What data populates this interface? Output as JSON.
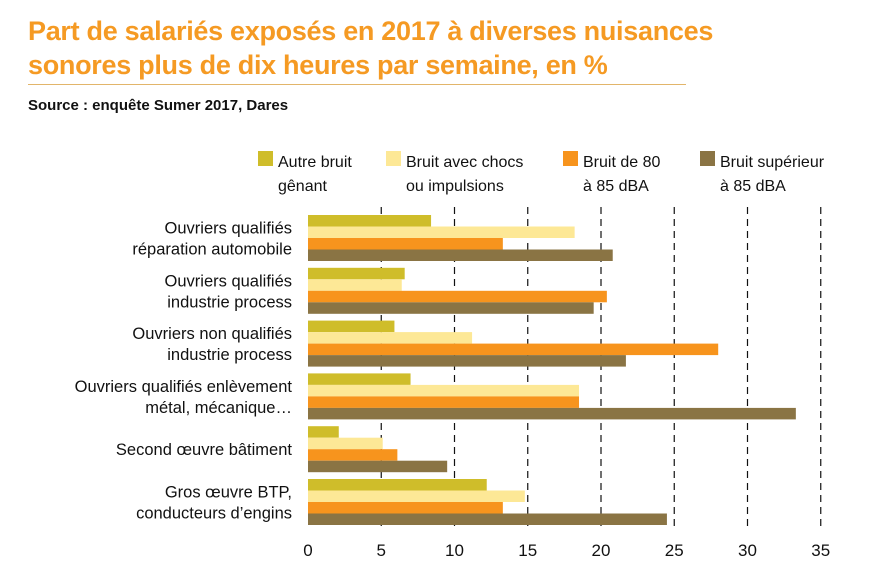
{
  "title_lines": [
    "Part de salariés exposés en 2017 à diverses nuisances",
    "sonores plus de dix heures par semaine, en %"
  ],
  "source": "Source : enquête Sumer 2017, Dares",
  "colors": {
    "title": "#f59a23",
    "series": [
      "#cfbd2a",
      "#fde896",
      "#f7941d",
      "#8a7444"
    ],
    "gridline": "#111111"
  },
  "chart_data": {
    "type": "bar",
    "orientation": "horizontal",
    "title": "Part de salariés exposés en 2017 à diverses nuisances sonores plus de dix heures par semaine, en %",
    "source": "Source : enquête Sumer 2017, Dares",
    "categories": [
      [
        "Ouvriers qualifiés",
        "réparation automobile"
      ],
      [
        "Ouvriers qualifiés",
        "industrie process"
      ],
      [
        "Ouvriers non qualifiés",
        "industrie process"
      ],
      [
        "Ouvriers qualifiés enlèvement",
        "métal, mécanique…"
      ],
      [
        "Second œuvre bâtiment"
      ],
      [
        "Gros œuvre BTP,",
        "conducteurs d’engins"
      ]
    ],
    "series": [
      {
        "name": "Autre bruit gênant",
        "legend_lines": [
          "Autre bruit",
          "gênant"
        ],
        "values": [
          8.4,
          6.6,
          5.9,
          7.0,
          2.1,
          12.2
        ]
      },
      {
        "name": "Bruit avec chocs ou impulsions",
        "legend_lines": [
          "Bruit avec chocs",
          "ou impulsions"
        ],
        "values": [
          18.2,
          6.4,
          11.2,
          18.5,
          5.1,
          14.8
        ]
      },
      {
        "name": "Bruit de 80 à 85 dBA",
        "legend_lines": [
          "Bruit de 80",
          "à 85 dBA"
        ],
        "values": [
          13.3,
          20.4,
          28.0,
          18.5,
          6.1,
          13.3
        ]
      },
      {
        "name": "Bruit supérieur à 85 dBA",
        "legend_lines": [
          "Bruit supérieur",
          "à 85 dBA"
        ],
        "values": [
          20.8,
          19.5,
          21.7,
          33.3,
          9.5,
          24.5
        ]
      }
    ],
    "xlim": [
      0,
      35
    ],
    "xticks": [
      0,
      5,
      10,
      15,
      20,
      25,
      30,
      35
    ],
    "xlabel": "",
    "ylabel": "",
    "grid": "vertical dashed",
    "legend_position": "top"
  }
}
